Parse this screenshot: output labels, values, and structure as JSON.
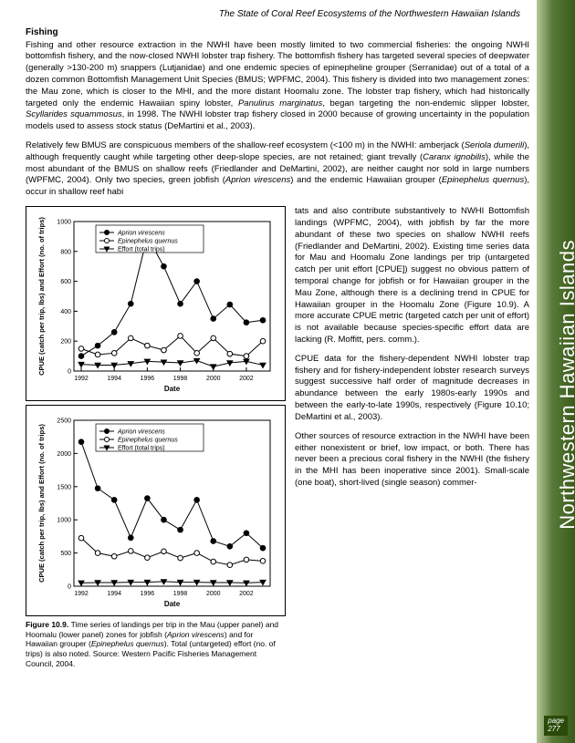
{
  "header": "The State of Coral Reef Ecosystems of the Northwestern Hawaiian Islands",
  "sidebar": "Northwestern Hawaiian Islands",
  "page_label": "page",
  "page_number": "277",
  "section_title": "Fishing",
  "para1": "Fishing and other resource extraction in the NWHI have been mostly limited to two commercial fisheries: the ongoing NWHI bottomfish fishery, and the now-closed NWHI lobster trap fishery. The bottomfish fishery has targeted several species of deepwater (generally >130-200 m) snappers (Lutjanidae) and one endemic species of epinepheline grouper (Serranidae) out of a total of a dozen common Bottomfish Management Unit Species (BMUS; WPFMC, 2004). This fishery is divided into two management zones: the Mau zone, which is closer to the MHI, and the more distant Hoomalu zone. The lobster trap fishery, which had historically targeted only the endemic Hawaiian spiny lobster, ",
  "para1_it1": "Panulirus marginatus",
  "para1_mid": ", began targeting the non-endemic slipper lobster, ",
  "para1_it2": "Scyllarides squammosus",
  "para1_end": ", in 1998. The NWHI lobster trap fishery closed in 2000 because of growing uncertainty in the population models used to assess stock status (DeMartini et al., 2003).",
  "para2a": "Relatively few BMUS are conspicuous members of the shallow-reef ecosystem (<100 m) in the NWHI: amberjack (",
  "para2_it1": "Seriola dumerili",
  "para2b": "), although frequently caught while targeting other deep-slope species, are not retained; giant trevally (",
  "para2_it2": "Caranx ignobilis",
  "para2c": "), while the most abundant of the BMUS on shallow reefs (Friedlander and DeMartini, 2002), are neither caught nor sold in large numbers (WPFMC, 2004). Only two species, green jobfish (",
  "para2_it3": "Aprion virescens",
  "para2d": ") and the endemic Hawaiian grouper (",
  "para2_it4": "Epinephelus quernus",
  "para2e": "), occur in shallow reef habi",
  "right_p1": "tats and also contribute substantively to NWHI Bottomfish landings (WPFMC, 2004), with jobfish by far the more abundant of these two species on shallow NWHI reefs (Friedlander and DeMartini, 2002). Existing time series data for Mau and Hoomalu Zone landings per trip (untargeted catch per unit effort [CPUE]) suggest no obvious pattern of temporal change for jobfish or for Hawaiian grouper in the Mau Zone, although there is a declining trend in CPUE for Hawaiian grouper in the Hoomalu Zone (Figure 10.9). A more accurate CPUE metric (targeted catch per unit of effort) is not available because species-specific effort data are lacking (R. Moffitt, pers. comm.).",
  "right_p2": "CPUE data for the fishery-dependent NWHI lobster trap fishery and for fishery-independent lobster research surveys suggest successive half order of magnitude decreases in abundance between the early 1980s-early 1990s and between the early-to-late 1990s, respectively (Figure 10.10; DeMartini et al., 2003).",
  "right_p3": "Other sources of resource extraction in the NWHI have been either nonexistent or brief, low impact, or both. There has never been a precious coral fishery in the NWHI (the fishery in the MHI has been inoperative since 2001). Small-scale (one boat), short-lived (single season) commer-",
  "caption_a": "Figure 10.9. ",
  "caption_b": "Time series of landings per trip in the Mau (upper panel) and Hoomalu (lower panel) zones for jobfish (",
  "caption_it1": "Aprion virescens",
  "caption_c": ") and for Hawaiian grouper (",
  "caption_it2": "Epinephelus quernus",
  "caption_d": "). Total (untargeted) effort (no. of trips) is also noted. Source: Western Pacific Fisheries Management Council, 2004.",
  "chart1": {
    "ylabel": "CPUE (catch per trip, lbs) and Effort (no. of trips)",
    "xlabel": "Date",
    "legend": [
      "Aprion virescens",
      "Epinephelus quernus",
      "Effort (total trips)"
    ],
    "xticks": [
      "1992",
      "1994",
      "1996",
      "1998",
      "2000",
      "2002"
    ],
    "yticks": [
      "0",
      "200",
      "400",
      "600",
      "800",
      "1000"
    ],
    "series": {
      "aprion": [
        100,
        170,
        260,
        450,
        900,
        700,
        450,
        600,
        350,
        445,
        325,
        340
      ],
      "epineph": [
        150,
        110,
        120,
        220,
        170,
        140,
        235,
        120,
        220,
        115,
        100,
        200
      ],
      "effort": [
        45,
        40,
        40,
        50,
        65,
        60,
        55,
        70,
        30,
        55,
        65,
        40
      ]
    },
    "colors": {
      "line": "#000000",
      "bg": "#ffffff"
    }
  },
  "chart2": {
    "ylabel": "CPUE (catch per trip, lbs) and Effort (no. of trips)",
    "xlabel": "Date",
    "legend": [
      "Aprion virescens",
      "Epinephelus quernus",
      "Effort (total trips)"
    ],
    "xticks": [
      "1992",
      "1994",
      "1996",
      "1998",
      "2000",
      "2002"
    ],
    "yticks": [
      "0",
      "500",
      "1000",
      "1500",
      "2000",
      "2500"
    ],
    "series": {
      "aprion": [
        2175,
        1475,
        1300,
        730,
        1325,
        1000,
        850,
        1300,
        680,
        600,
        800,
        575
      ],
      "epineph": [
        725,
        500,
        450,
        530,
        430,
        525,
        425,
        500,
        370,
        320,
        400,
        380
      ],
      "effort": [
        50,
        55,
        55,
        60,
        60,
        70,
        60,
        60,
        55,
        55,
        50,
        60
      ]
    },
    "colors": {
      "line": "#000000",
      "bg": "#ffffff"
    }
  }
}
